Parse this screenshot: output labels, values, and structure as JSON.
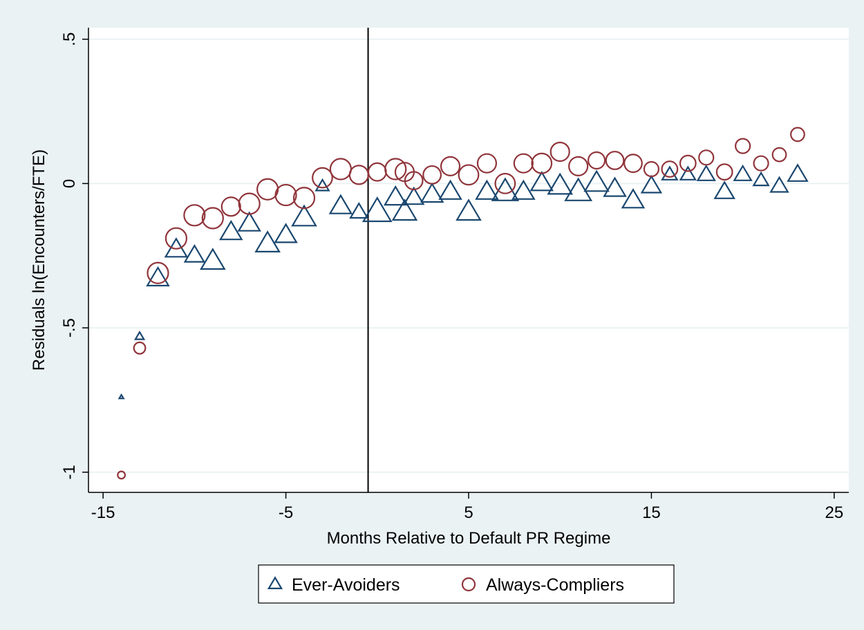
{
  "chart_data": {
    "type": "scatter",
    "title": "",
    "xlabel": "Months Relative to Default PR Regime",
    "ylabel": "Residuals ln(Encounters/FTE)",
    "xlim": [
      -15.8,
      25.8
    ],
    "ylim": [
      -1.07,
      0.54
    ],
    "xticks": [
      -15,
      -5,
      5,
      15,
      25
    ],
    "xtick_labels": [
      "-15",
      "-5",
      "5",
      "15",
      "25"
    ],
    "yticks": [
      -1,
      -0.5,
      0,
      0.5
    ],
    "ytick_labels": [
      "-1",
      "-.5",
      "0",
      ".5"
    ],
    "grid": "horizontal",
    "reference_line": {
      "axis": "x",
      "value": -0.5
    },
    "legend": {
      "position": "bottom"
    },
    "series": [
      {
        "name": "Ever-Avoiders",
        "marker": "triangle",
        "color": "#1a476f",
        "points": [
          [
            -14,
            -0.74,
            0.2
          ],
          [
            -13,
            -0.53,
            0.4
          ],
          [
            -12,
            -0.33,
            1.0
          ],
          [
            -11,
            -0.23,
            1.0
          ],
          [
            -10,
            -0.25,
            0.9
          ],
          [
            -9,
            -0.27,
            1.1
          ],
          [
            -8,
            -0.17,
            1.0
          ],
          [
            -7,
            -0.14,
            1.0
          ],
          [
            -6,
            -0.21,
            1.1
          ],
          [
            -5,
            -0.18,
            1.0
          ],
          [
            -4,
            -0.12,
            1.1
          ],
          [
            -3,
            -0.01,
            0.6
          ],
          [
            -2,
            -0.08,
            1.0
          ],
          [
            -1,
            -0.1,
            0.8
          ],
          [
            0,
            -0.1,
            1.3
          ],
          [
            1,
            -0.05,
            1.0
          ],
          [
            1.5,
            -0.1,
            1.1
          ],
          [
            2,
            -0.05,
            0.9
          ],
          [
            3,
            -0.04,
            1.0
          ],
          [
            4,
            -0.03,
            1.0
          ],
          [
            5,
            -0.1,
            1.1
          ],
          [
            6,
            -0.03,
            1.0
          ],
          [
            7,
            -0.03,
            1.2
          ],
          [
            8,
            -0.03,
            1.0
          ],
          [
            9,
            0.0,
            1.0
          ],
          [
            10,
            -0.01,
            1.1
          ],
          [
            11,
            -0.03,
            1.2
          ],
          [
            12,
            0.0,
            1.1
          ],
          [
            13,
            -0.02,
            1.0
          ],
          [
            14,
            -0.06,
            1.0
          ],
          [
            15,
            -0.01,
            0.9
          ],
          [
            16,
            0.03,
            0.7
          ],
          [
            17,
            0.03,
            0.7
          ],
          [
            18,
            0.03,
            0.8
          ],
          [
            19,
            -0.03,
            0.9
          ],
          [
            20,
            0.03,
            0.8
          ],
          [
            21,
            0.01,
            0.7
          ],
          [
            22,
            -0.01,
            0.8
          ],
          [
            23,
            0.03,
            0.9
          ]
        ]
      },
      {
        "name": "Always-Compliers",
        "marker": "circle",
        "color": "#90353b",
        "points": [
          [
            -14,
            -1.01,
            0.35
          ],
          [
            -13,
            -0.57,
            0.55
          ],
          [
            -12,
            -0.31,
            1.0
          ],
          [
            -11,
            -0.19,
            1.0
          ],
          [
            -10,
            -0.11,
            1.0
          ],
          [
            -9,
            -0.12,
            1.0
          ],
          [
            -8,
            -0.08,
            0.9
          ],
          [
            -7,
            -0.07,
            1.0
          ],
          [
            -6,
            -0.02,
            1.0
          ],
          [
            -5,
            -0.04,
            1.0
          ],
          [
            -4,
            -0.05,
            1.0
          ],
          [
            -3,
            0.02,
            0.95
          ],
          [
            -2,
            0.05,
            1.0
          ],
          [
            -1,
            0.03,
            0.9
          ],
          [
            0,
            0.04,
            0.85
          ],
          [
            1,
            0.05,
            1.0
          ],
          [
            1.5,
            0.04,
            0.9
          ],
          [
            2,
            0.01,
            0.85
          ],
          [
            3,
            0.03,
            0.85
          ],
          [
            4,
            0.06,
            0.9
          ],
          [
            5,
            0.03,
            0.95
          ],
          [
            6,
            0.07,
            0.9
          ],
          [
            7,
            0.0,
            0.95
          ],
          [
            8,
            0.07,
            0.9
          ],
          [
            9,
            0.07,
            0.95
          ],
          [
            10,
            0.11,
            0.9
          ],
          [
            11,
            0.06,
            0.9
          ],
          [
            12,
            0.08,
            0.8
          ],
          [
            13,
            0.08,
            0.85
          ],
          [
            14,
            0.07,
            0.85
          ],
          [
            15,
            0.05,
            0.7
          ],
          [
            16,
            0.05,
            0.75
          ],
          [
            17,
            0.07,
            0.75
          ],
          [
            18,
            0.09,
            0.7
          ],
          [
            19,
            0.04,
            0.75
          ],
          [
            20,
            0.13,
            0.7
          ],
          [
            21,
            0.07,
            0.7
          ],
          [
            22,
            0.1,
            0.65
          ],
          [
            23,
            0.17,
            0.65
          ]
        ]
      }
    ]
  }
}
